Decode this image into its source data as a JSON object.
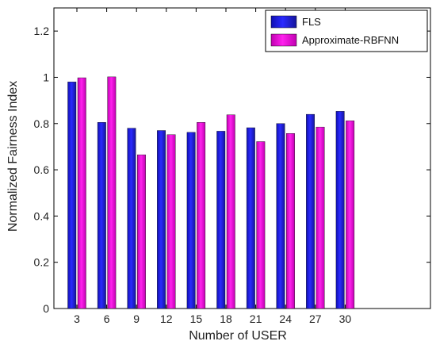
{
  "chart_data": {
    "type": "bar",
    "categories": [
      "3",
      "6",
      "9",
      "12",
      "15",
      "18",
      "21",
      "24",
      "27",
      "30"
    ],
    "series": [
      {
        "name": "FLS",
        "color": "#1f1fe6",
        "values": [
          0.98,
          0.805,
          0.78,
          0.77,
          0.762,
          0.767,
          0.782,
          0.8,
          0.84,
          0.853
        ]
      },
      {
        "name": "Approximate-RBFNN",
        "color": "#ff10e6",
        "values": [
          0.998,
          1.002,
          0.665,
          0.752,
          0.805,
          0.838,
          0.722,
          0.757,
          0.785,
          0.812
        ]
      }
    ],
    "xlabel": "Number of USER",
    "ylabel": "Normalized Fairness Index",
    "ylim": [
      0,
      1.3
    ],
    "yticks": [
      "0",
      "0.2",
      "0.4",
      "0.6",
      "0.8",
      "1",
      "1.2"
    ],
    "grid": false,
    "legend_position": "top-right"
  }
}
